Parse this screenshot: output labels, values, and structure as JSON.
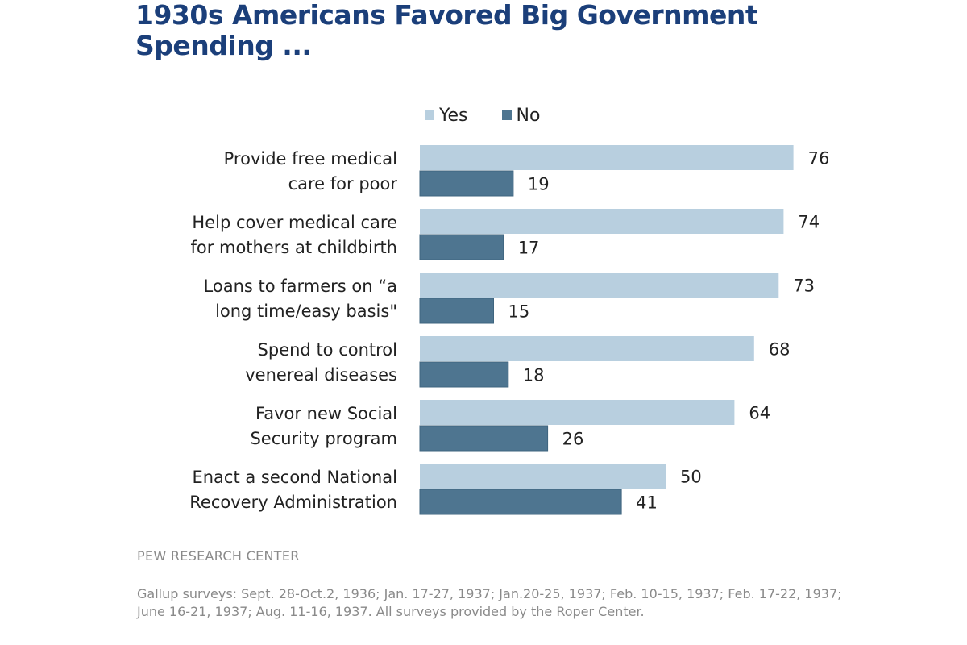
{
  "chart_data": {
    "type": "bar",
    "orientation": "horizontal",
    "title": "1930s Americans Favored Big Government Spending ...",
    "categories": [
      [
        "Provide free medical",
        "care for poor"
      ],
      [
        "Help cover medical care",
        "for mothers at childbirth"
      ],
      [
        "Loans to farmers on “a",
        "long time/easy basis\""
      ],
      [
        "Spend to control",
        "venereal diseases"
      ],
      [
        "Favor new Social",
        "Security program"
      ],
      [
        "Enact a second National",
        "Recovery Administration"
      ]
    ],
    "series": [
      {
        "name": "Yes",
        "color": "#b8cfdf",
        "values": [
          76,
          74,
          73,
          68,
          64,
          50
        ]
      },
      {
        "name": "No",
        "color": "#4e7590",
        "values": [
          19,
          17,
          15,
          18,
          26,
          41
        ]
      }
    ],
    "xlabel": "",
    "ylabel": "",
    "xlim": [
      0,
      80
    ],
    "grid": false,
    "legend_position": "top"
  },
  "source": "PEW RESEARCH  CENTER",
  "note": "Gallup surveys: Sept. 28-Oct.2, 1936; Jan. 17-27, 1937; Jan.20-25, 1937; Feb. 10-15, 1937; Feb. 17-22, 1937; June 16-21, 1937; Aug. 11-16, 1937.  All surveys provided by the Roper Center."
}
